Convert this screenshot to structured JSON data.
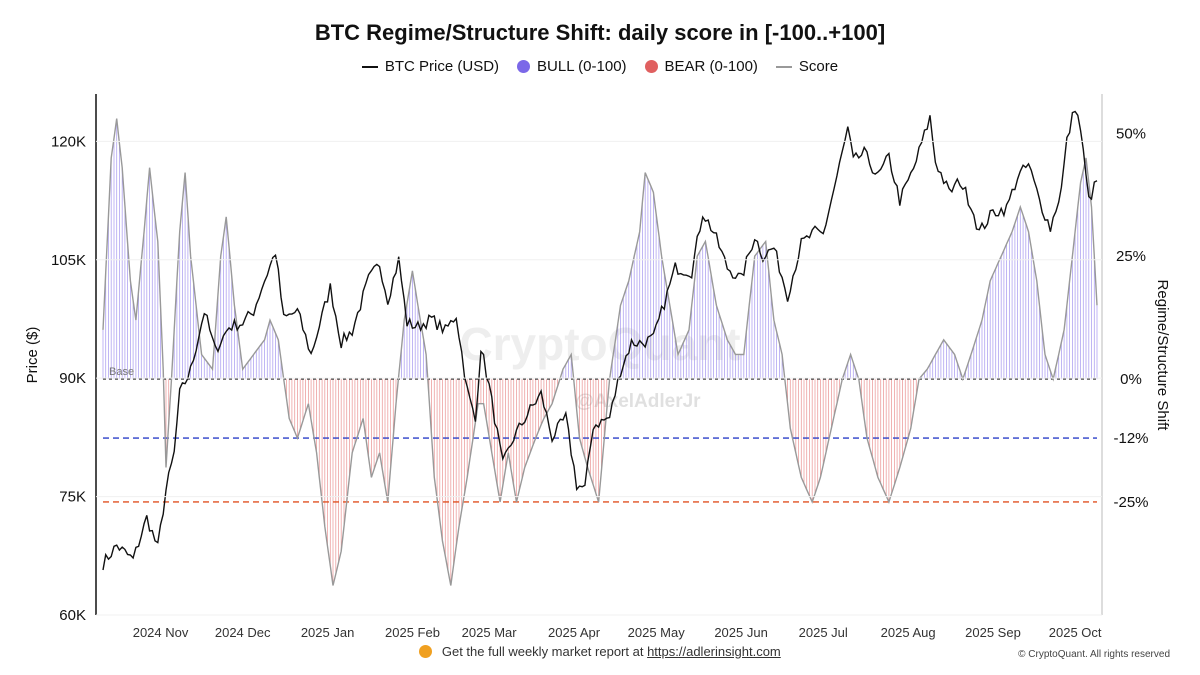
{
  "chart_data": {
    "type": "line",
    "title": "BTC Regime/Structure Shift: daily score in [-100..+100]",
    "legend": [
      {
        "name": "BTC Price (USD)",
        "marker": "line",
        "color": "#111111"
      },
      {
        "name": "BULL (0-100)",
        "marker": "dot",
        "color": "#7b68e8"
      },
      {
        "name": "BEAR (0-100)",
        "marker": "dot",
        "color": "#e06060"
      },
      {
        "name": "Score",
        "marker": "line",
        "color": "#999999"
      }
    ],
    "ylabel_left": "Price ($)",
    "ylabel_right": "Regime/Structure Shift",
    "left_ticks": [
      "60K",
      "75K",
      "90K",
      "105K",
      "120K"
    ],
    "left_ylim": [
      60000,
      126000
    ],
    "right_ticks": [
      "50%",
      "25%",
      "0%",
      "-12%",
      "-25%"
    ],
    "right_ylim": [
      -48,
      58
    ],
    "x_ticks": [
      "2024 Nov",
      "2024 Dec",
      "2025 Jan",
      "2025 Feb",
      "2025 Mar",
      "2025 Apr",
      "2025 May",
      "2025 Jun",
      "2025 Jul",
      "2025 Aug",
      "2025 Sep",
      "2025 Oct"
    ],
    "x_range": [
      "2024-10-15",
      "2025-10-13"
    ],
    "reference_lines": [
      {
        "label": "Base",
        "value": 0,
        "color": "#222222",
        "style": "dashed"
      },
      {
        "value": -12,
        "color": "#2a3fc8",
        "style": "dashed"
      },
      {
        "value": -25,
        "color": "#e05020",
        "style": "dashed"
      }
    ],
    "price_keypoints": [
      [
        "2024-10-15",
        66500
      ],
      [
        "2024-10-20",
        68800
      ],
      [
        "2024-10-26",
        67000
      ],
      [
        "2024-10-31",
        72300
      ],
      [
        "2024-11-04",
        68500
      ],
      [
        "2024-11-07",
        75800
      ],
      [
        "2024-11-10",
        80500
      ],
      [
        "2024-11-12",
        88000
      ],
      [
        "2024-11-16",
        91000
      ],
      [
        "2024-11-21",
        98500
      ],
      [
        "2024-11-25",
        93500
      ],
      [
        "2024-11-30",
        96500
      ],
      [
        "2024-12-05",
        97000
      ],
      [
        "2024-12-09",
        98500
      ],
      [
        "2024-12-12",
        101500
      ],
      [
        "2024-12-17",
        106000
      ],
      [
        "2024-12-20",
        97500
      ],
      [
        "2024-12-25",
        98500
      ],
      [
        "2024-12-30",
        93000
      ],
      [
        "2025-01-06",
        101500
      ],
      [
        "2025-01-10",
        94500
      ],
      [
        "2025-01-14",
        96000
      ],
      [
        "2025-01-20",
        102500
      ],
      [
        "2025-01-24",
        104500
      ],
      [
        "2025-01-27",
        100000
      ],
      [
        "2025-01-31",
        105000
      ],
      [
        "2025-02-03",
        97000
      ],
      [
        "2025-02-07",
        96500
      ],
      [
        "2025-02-12",
        97500
      ],
      [
        "2025-02-17",
        96000
      ],
      [
        "2025-02-21",
        98000
      ],
      [
        "2025-02-25",
        88500
      ],
      [
        "2025-02-28",
        84500
      ],
      [
        "2025-03-02",
        94000
      ],
      [
        "2025-03-05",
        89000
      ],
      [
        "2025-03-10",
        79000
      ],
      [
        "2025-03-14",
        82500
      ],
      [
        "2025-03-20",
        86000
      ],
      [
        "2025-03-24",
        88000
      ],
      [
        "2025-03-28",
        82500
      ],
      [
        "2025-04-02",
        85000
      ],
      [
        "2025-04-06",
        76500
      ],
      [
        "2025-04-09",
        76000
      ],
      [
        "2025-04-12",
        84000
      ],
      [
        "2025-04-18",
        85000
      ],
      [
        "2025-04-22",
        91000
      ],
      [
        "2025-04-26",
        94500
      ],
      [
        "2025-04-30",
        94500
      ],
      [
        "2025-05-04",
        95000
      ],
      [
        "2025-05-08",
        99500
      ],
      [
        "2025-05-12",
        104000
      ],
      [
        "2025-05-18",
        103500
      ],
      [
        "2025-05-22",
        111000
      ],
      [
        "2025-05-26",
        108500
      ],
      [
        "2025-05-31",
        104000
      ],
      [
        "2025-06-05",
        102500
      ],
      [
        "2025-06-10",
        108000
      ],
      [
        "2025-06-13",
        105500
      ],
      [
        "2025-06-17",
        106500
      ],
      [
        "2025-06-22",
        100500
      ],
      [
        "2025-06-27",
        107000
      ],
      [
        "2025-07-02",
        108500
      ],
      [
        "2025-07-05",
        108200
      ],
      [
        "2025-07-10",
        115500
      ],
      [
        "2025-07-14",
        121500
      ],
      [
        "2025-07-16",
        117500
      ],
      [
        "2025-07-20",
        118500
      ],
      [
        "2025-07-25",
        115500
      ],
      [
        "2025-07-29",
        118000
      ],
      [
        "2025-08-02",
        112500
      ],
      [
        "2025-08-07",
        116500
      ],
      [
        "2025-08-13",
        123000
      ],
      [
        "2025-08-15",
        117500
      ],
      [
        "2025-08-20",
        113500
      ],
      [
        "2025-08-24",
        115000
      ],
      [
        "2025-08-28",
        112000
      ],
      [
        "2025-08-31",
        108500
      ],
      [
        "2025-09-05",
        111000
      ],
      [
        "2025-09-10",
        111500
      ],
      [
        "2025-09-14",
        115500
      ],
      [
        "2025-09-18",
        117000
      ],
      [
        "2025-09-22",
        112500
      ],
      [
        "2025-09-26",
        109000
      ],
      [
        "2025-09-30",
        114000
      ],
      [
        "2025-10-02",
        120000
      ],
      [
        "2025-10-05",
        124500
      ],
      [
        "2025-10-07",
        121500
      ],
      [
        "2025-10-10",
        112500
      ],
      [
        "2025-10-13",
        115000
      ]
    ],
    "score_keypoints": [
      [
        "2024-10-15",
        10
      ],
      [
        "2024-10-18",
        45
      ],
      [
        "2024-10-20",
        53
      ],
      [
        "2024-10-22",
        43
      ],
      [
        "2024-10-25",
        20
      ],
      [
        "2024-10-27",
        12
      ],
      [
        "2024-10-30",
        30
      ],
      [
        "2024-11-01",
        43
      ],
      [
        "2024-11-04",
        28
      ],
      [
        "2024-11-06",
        2
      ],
      [
        "2024-11-07",
        -18
      ],
      [
        "2024-11-09",
        0
      ],
      [
        "2024-11-12",
        30
      ],
      [
        "2024-11-14",
        42
      ],
      [
        "2024-11-16",
        25
      ],
      [
        "2024-11-20",
        5
      ],
      [
        "2024-11-24",
        2
      ],
      [
        "2024-11-27",
        25
      ],
      [
        "2024-11-29",
        33
      ],
      [
        "2024-12-02",
        15
      ],
      [
        "2024-12-05",
        2
      ],
      [
        "2024-12-09",
        5
      ],
      [
        "2024-12-13",
        8
      ],
      [
        "2024-12-15",
        12
      ],
      [
        "2024-12-18",
        8
      ],
      [
        "2024-12-22",
        -8
      ],
      [
        "2024-12-25",
        -12
      ],
      [
        "2024-12-29",
        -5
      ],
      [
        "2025-01-01",
        -15
      ],
      [
        "2025-01-04",
        -30
      ],
      [
        "2025-01-07",
        -42
      ],
      [
        "2025-01-10",
        -35
      ],
      [
        "2025-01-14",
        -15
      ],
      [
        "2025-01-18",
        -8
      ],
      [
        "2025-01-21",
        -20
      ],
      [
        "2025-01-24",
        -15
      ],
      [
        "2025-01-27",
        -25
      ],
      [
        "2025-01-30",
        -5
      ],
      [
        "2025-02-02",
        12
      ],
      [
        "2025-02-05",
        22
      ],
      [
        "2025-02-07",
        15
      ],
      [
        "2025-02-10",
        5
      ],
      [
        "2025-02-13",
        -20
      ],
      [
        "2025-02-16",
        -33
      ],
      [
        "2025-02-19",
        -42
      ],
      [
        "2025-02-22",
        -30
      ],
      [
        "2025-02-25",
        -20
      ],
      [
        "2025-03-01",
        -5
      ],
      [
        "2025-03-03",
        -5
      ],
      [
        "2025-03-06",
        -15
      ],
      [
        "2025-03-09",
        -25
      ],
      [
        "2025-03-12",
        -15
      ],
      [
        "2025-03-15",
        -25
      ],
      [
        "2025-03-18",
        -18
      ],
      [
        "2025-03-22",
        -12
      ],
      [
        "2025-03-25",
        -8
      ],
      [
        "2025-03-28",
        -5
      ],
      [
        "2025-04-01",
        2
      ],
      [
        "2025-04-04",
        5
      ],
      [
        "2025-04-07",
        -12
      ],
      [
        "2025-04-10",
        -18
      ],
      [
        "2025-04-14",
        -25
      ],
      [
        "2025-04-18",
        0
      ],
      [
        "2025-04-22",
        15
      ],
      [
        "2025-04-25",
        20
      ],
      [
        "2025-04-29",
        30
      ],
      [
        "2025-05-01",
        42
      ],
      [
        "2025-05-04",
        38
      ],
      [
        "2025-05-07",
        25
      ],
      [
        "2025-05-10",
        15
      ],
      [
        "2025-05-13",
        5
      ],
      [
        "2025-05-17",
        10
      ],
      [
        "2025-05-20",
        25
      ],
      [
        "2025-05-23",
        28
      ],
      [
        "2025-05-27",
        15
      ],
      [
        "2025-05-31",
        8
      ],
      [
        "2025-06-03",
        5
      ],
      [
        "2025-06-06",
        5
      ],
      [
        "2025-06-10",
        25
      ],
      [
        "2025-06-14",
        28
      ],
      [
        "2025-06-17",
        12
      ],
      [
        "2025-06-20",
        5
      ],
      [
        "2025-06-23",
        -10
      ],
      [
        "2025-06-27",
        -20
      ],
      [
        "2025-07-01",
        -25
      ],
      [
        "2025-07-04",
        -20
      ],
      [
        "2025-07-08",
        -10
      ],
      [
        "2025-07-12",
        0
      ],
      [
        "2025-07-15",
        5
      ],
      [
        "2025-07-18",
        0
      ],
      [
        "2025-07-21",
        -12
      ],
      [
        "2025-07-25",
        -20
      ],
      [
        "2025-07-29",
        -25
      ],
      [
        "2025-08-02",
        -18
      ],
      [
        "2025-08-06",
        -10
      ],
      [
        "2025-08-09",
        0
      ],
      [
        "2025-08-12",
        2
      ],
      [
        "2025-08-15",
        5
      ],
      [
        "2025-08-18",
        8
      ],
      [
        "2025-08-22",
        5
      ],
      [
        "2025-08-25",
        0
      ],
      [
        "2025-08-28",
        5
      ],
      [
        "2025-09-01",
        12
      ],
      [
        "2025-09-04",
        20
      ],
      [
        "2025-09-08",
        25
      ],
      [
        "2025-09-12",
        30
      ],
      [
        "2025-09-15",
        35
      ],
      [
        "2025-09-18",
        30
      ],
      [
        "2025-09-21",
        20
      ],
      [
        "2025-09-24",
        5
      ],
      [
        "2025-09-27",
        0
      ],
      [
        "2025-10-01",
        10
      ],
      [
        "2025-10-04",
        25
      ],
      [
        "2025-10-07",
        40
      ],
      [
        "2025-10-09",
        45
      ],
      [
        "2025-10-11",
        35
      ],
      [
        "2025-10-13",
        15
      ]
    ]
  },
  "watermark": {
    "brand": "CryptoQuant",
    "author": "@AxelAdlerJr"
  },
  "footer": {
    "text": "Get the full weekly market report at",
    "link": "https://adlerinsight.com"
  },
  "copyright": "© CryptoQuant. All rights reserved",
  "colors": {
    "price": "#111111",
    "bull": "#7b68e8",
    "bear": "#e06060",
    "score": "#999999",
    "base": "#222222",
    "line12": "#2a3fc8",
    "line25": "#e05020"
  }
}
